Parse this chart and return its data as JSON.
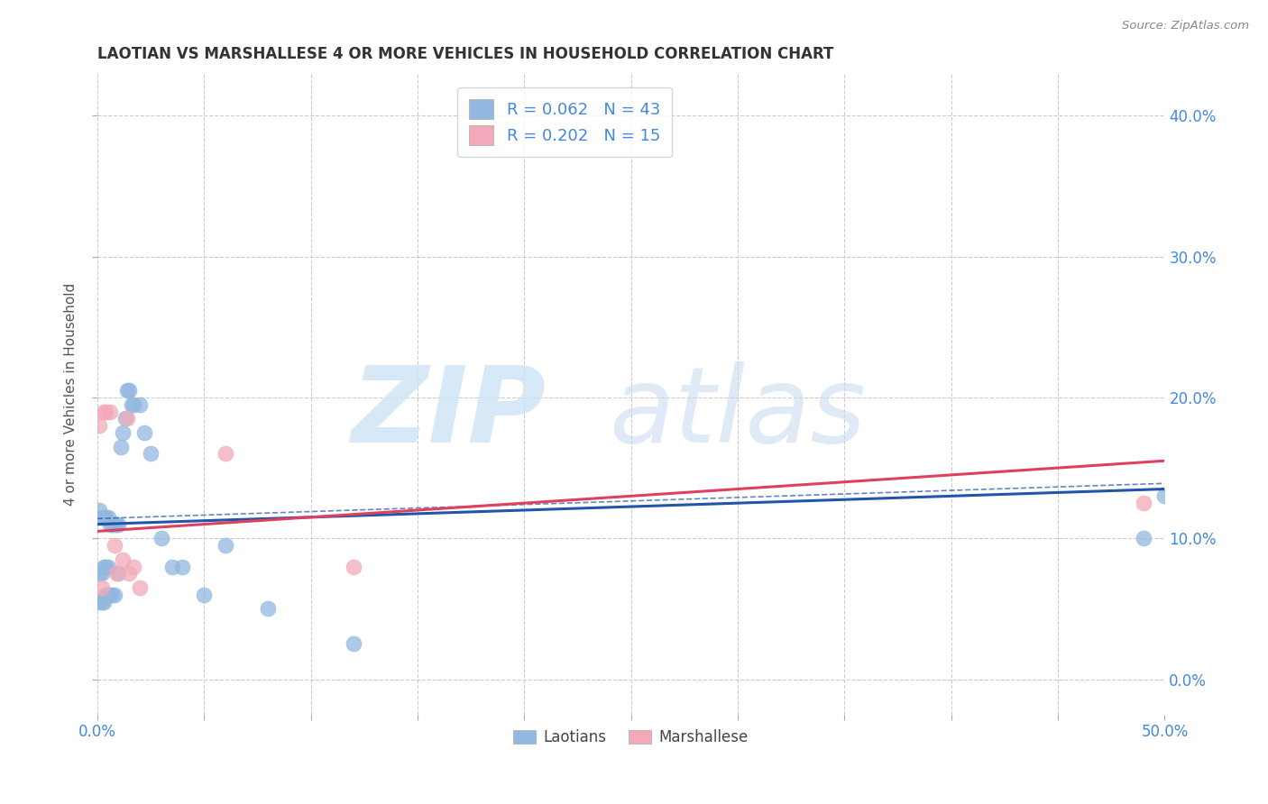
{
  "title": "LAOTIAN VS MARSHALLESE 4 OR MORE VEHICLES IN HOUSEHOLD CORRELATION CHART",
  "source": "Source: ZipAtlas.com",
  "ylabel": "4 or more Vehicles in Household",
  "xlim": [
    0.0,
    0.5
  ],
  "ylim": [
    -0.025,
    0.43
  ],
  "laotian_R": "0.062",
  "laotian_N": "43",
  "marshallese_R": "0.202",
  "marshallese_N": "15",
  "laotian_color": "#92b8e0",
  "marshallese_color": "#f2aab8",
  "trendline_laotian_color": "#2255aa",
  "trendline_marshallese_color": "#e04060",
  "laotian_x": [
    0.001,
    0.001,
    0.001,
    0.002,
    0.002,
    0.002,
    0.003,
    0.003,
    0.003,
    0.004,
    0.004,
    0.004,
    0.005,
    0.005,
    0.005,
    0.006,
    0.006,
    0.007,
    0.007,
    0.008,
    0.008,
    0.009,
    0.01,
    0.01,
    0.011,
    0.012,
    0.013,
    0.014,
    0.015,
    0.016,
    0.017,
    0.02,
    0.022,
    0.025,
    0.03,
    0.035,
    0.04,
    0.05,
    0.06,
    0.08,
    0.12,
    0.49,
    0.5
  ],
  "laotian_y": [
    0.12,
    0.075,
    0.055,
    0.115,
    0.075,
    0.055,
    0.115,
    0.08,
    0.055,
    0.115,
    0.08,
    0.06,
    0.115,
    0.08,
    0.06,
    0.11,
    0.06,
    0.11,
    0.06,
    0.11,
    0.06,
    0.11,
    0.11,
    0.075,
    0.165,
    0.175,
    0.185,
    0.205,
    0.205,
    0.195,
    0.195,
    0.195,
    0.175,
    0.16,
    0.1,
    0.08,
    0.08,
    0.06,
    0.095,
    0.05,
    0.025,
    0.1,
    0.13
  ],
  "marshallese_x": [
    0.001,
    0.002,
    0.003,
    0.004,
    0.006,
    0.008,
    0.009,
    0.012,
    0.014,
    0.015,
    0.017,
    0.02,
    0.06,
    0.12,
    0.49
  ],
  "marshallese_y": [
    0.18,
    0.065,
    0.19,
    0.19,
    0.19,
    0.095,
    0.075,
    0.085,
    0.185,
    0.075,
    0.08,
    0.065,
    0.16,
    0.08,
    0.125
  ],
  "trendline_lao_start": 0.11,
  "trendline_lao_end": 0.135,
  "trendline_marsh_start": 0.105,
  "trendline_marsh_end": 0.155,
  "grid_color": "#cccccc",
  "grid_style": "--",
  "background_color": "#ffffff",
  "title_color": "#333333",
  "axis_color": "#4488dd",
  "tick_color": "#4488dd"
}
